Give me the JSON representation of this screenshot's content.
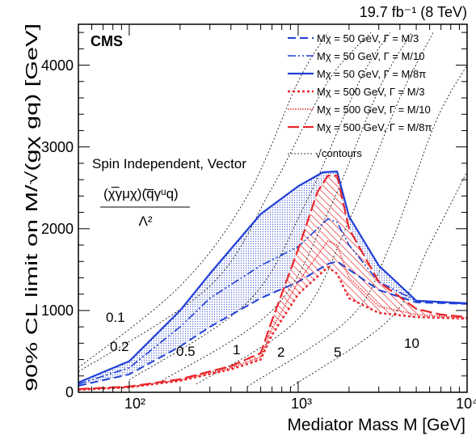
{
  "chart_data": {
    "type": "line",
    "title": "19.7 fb⁻¹ (8 TeV)",
    "experiment_label": "CMS",
    "xlabel": "Mediator Mass M [GeV]",
    "ylabel": "90% CL limit on M/√(gχ gq) [GeV]",
    "xscale": "log",
    "xlim": [
      50,
      10000
    ],
    "ylim": [
      0,
      4500
    ],
    "x_tick_labels": [
      "10²",
      "10³",
      "10⁴"
    ],
    "y_tick_labels": [
      "0",
      "1000",
      "2000",
      "3000",
      "4000"
    ],
    "model_text": {
      "line1": "Spin Independent, Vector",
      "numerator": "(χ̅γμχ)(q̅γᵘq)",
      "denominator": "Λ²"
    },
    "legend_position": "top-right",
    "series": [
      {
        "name": "Mχ = 50 GeV, Γ = M/3",
        "color": "#1f3fd6",
        "dash": "10,5",
        "width": 2,
        "x": [
          50,
          100,
          200,
          300,
          600,
          1000,
          1500,
          1700,
          2000,
          3000,
          5000,
          10000
        ],
        "y": [
          80,
          220,
          560,
          800,
          1150,
          1350,
          1570,
          1600,
          1500,
          1250,
          1100,
          1080
        ]
      },
      {
        "name": "Mχ = 50 GeV, Γ = M/10",
        "color": "#1f3fd6",
        "dash": "10,3,2,3,2,3",
        "width": 1.6,
        "x": [
          50,
          100,
          200,
          300,
          600,
          1000,
          1500,
          1700,
          2000,
          3000,
          5000,
          10000
        ],
        "y": [
          100,
          300,
          800,
          1150,
          1550,
          1780,
          2120,
          2080,
          1800,
          1350,
          1120,
          1080
        ]
      },
      {
        "name": "Mχ = 50 GeV, Γ = M/8π",
        "color": "#1f3fd6",
        "dash": "",
        "width": 2.2,
        "x": [
          50,
          100,
          200,
          300,
          600,
          1000,
          1400,
          1700,
          2000,
          3000,
          5000,
          10000
        ],
        "y": [
          120,
          380,
          1000,
          1450,
          2180,
          2520,
          2690,
          2700,
          2150,
          1550,
          1120,
          1090
        ]
      },
      {
        "name": "Mχ = 500 GeV, Γ = M/3",
        "color": "#e8262a",
        "dash": "3,3",
        "width": 2.4,
        "x": [
          50,
          100,
          200,
          400,
          600,
          700,
          1000,
          1500,
          1700,
          2000,
          3000,
          5000,
          7000,
          10000
        ],
        "y": [
          30,
          60,
          140,
          280,
          400,
          700,
          1200,
          1530,
          1450,
          1150,
          970,
          920,
          910,
          900
        ]
      },
      {
        "name": "Mχ = 500 GeV, Γ = M/10",
        "color": "#e8262a",
        "dash": "1.5,1.5",
        "width": 1.4,
        "x": [
          50,
          100,
          200,
          400,
          600,
          700,
          1000,
          1500,
          1700,
          2000,
          3000,
          5000,
          7000,
          10000
        ],
        "y": [
          35,
          65,
          150,
          300,
          430,
          780,
          1350,
          1850,
          1800,
          1400,
          1050,
          950,
          930,
          910
        ]
      },
      {
        "name": "Mχ = 500 GeV, Γ = M/8π",
        "color": "#e8262a",
        "dash": "14,5",
        "width": 2.2,
        "x": [
          50,
          100,
          200,
          400,
          600,
          700,
          1000,
          1300,
          1500,
          1700,
          2000,
          3000,
          5000,
          7000,
          10000
        ],
        "y": [
          40,
          70,
          160,
          320,
          480,
          880,
          1750,
          2450,
          2650,
          2650,
          2000,
          1350,
          1020,
          950,
          920
        ]
      }
    ],
    "contours_legend": "contours",
    "contours": [
      {
        "label": "0.1",
        "coupling": 0.1
      },
      {
        "label": "0.2",
        "coupling": 0.2
      },
      {
        "label": "0.5",
        "coupling": 0.5
      },
      {
        "label": "1",
        "coupling": 1
      },
      {
        "label": "2",
        "coupling": 2
      },
      {
        "label": "5",
        "coupling": 5
      },
      {
        "label": "10",
        "coupling": 10
      }
    ],
    "contour_curves": [
      {
        "x": [
          50,
          200,
          500,
          1000,
          1500
        ],
        "y": [
          300,
          1300,
          2400,
          3800,
          4400
        ]
      },
      {
        "x": [
          50,
          300,
          700,
          1500,
          2700
        ],
        "y": [
          250,
          1300,
          2500,
          3800,
          4400
        ]
      },
      {
        "x": [
          100,
          500,
          1100,
          2300,
          3500
        ],
        "y": [
          150,
          1100,
          2300,
          3800,
          4400
        ]
      },
      {
        "x": [
          150,
          700,
          1500,
          3000,
          4700
        ],
        "y": [
          120,
          1000,
          2200,
          3700,
          4400
        ]
      },
      {
        "x": [
          250,
          1000,
          2000,
          4000,
          6300
        ],
        "y": [
          100,
          900,
          2100,
          3600,
          4400
        ]
      },
      {
        "x": [
          500,
          2000,
          3500,
          6500,
          10000
        ],
        "y": [
          70,
          900,
          1800,
          3300,
          4000
        ]
      },
      {
        "x": [
          900,
          3500,
          6000,
          10000
        ],
        "y": [
          60,
          900,
          1800,
          2700
        ]
      }
    ]
  }
}
